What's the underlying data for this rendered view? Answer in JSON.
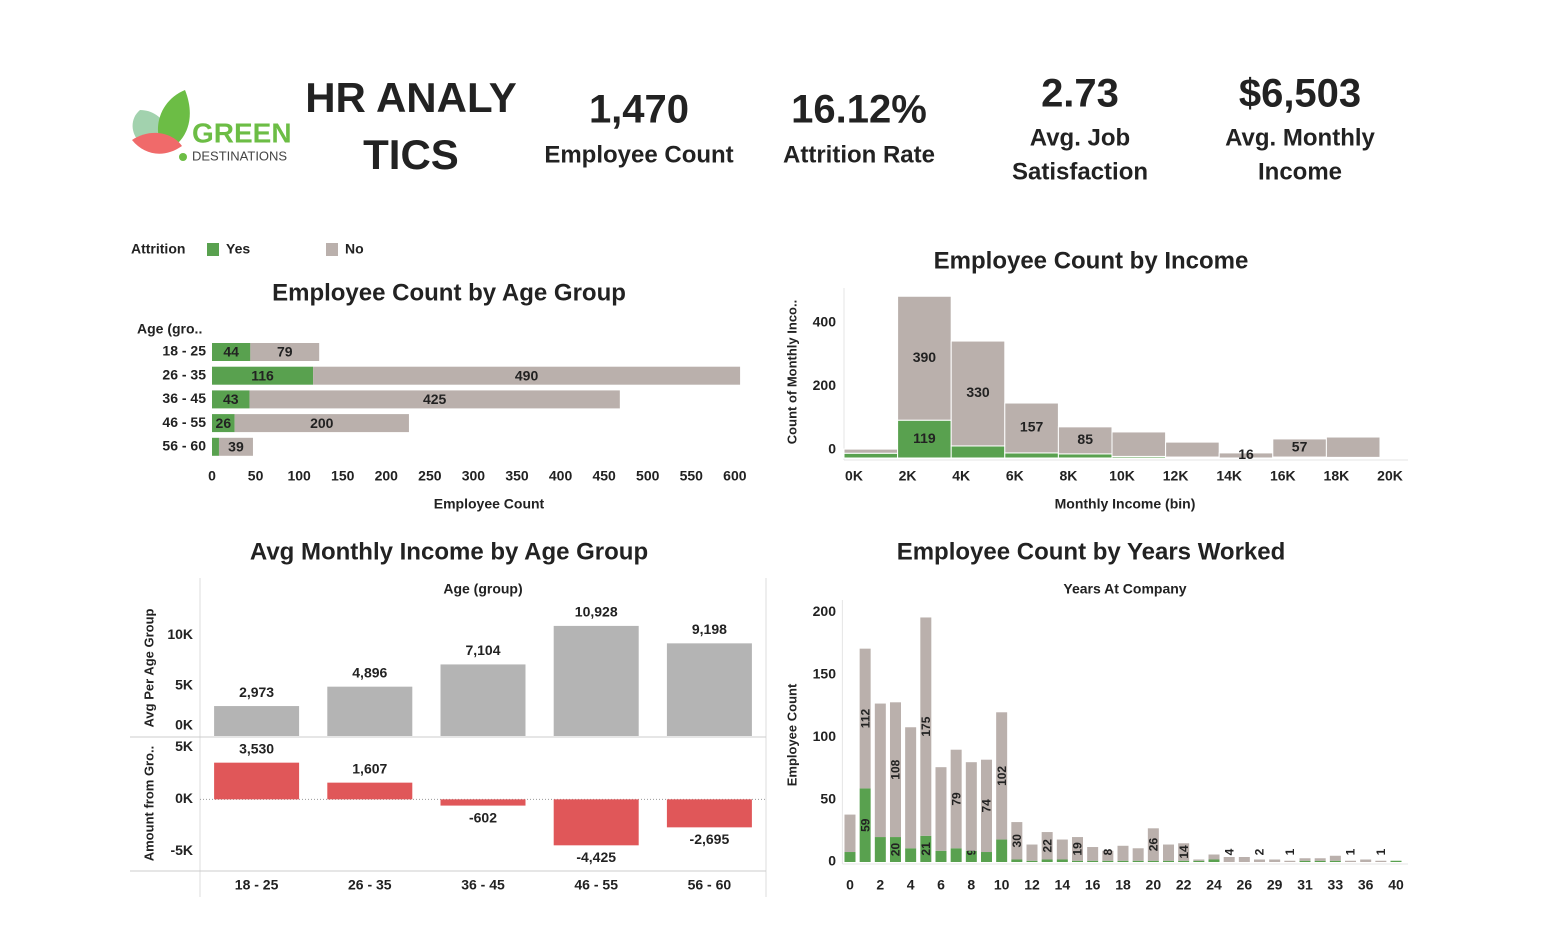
{
  "header": {
    "logo": {
      "brand": "GREEN",
      "sub": "DESTINATIONS"
    },
    "title_lines": [
      "HR ANALY",
      "TICS"
    ],
    "kpis": [
      {
        "value": "1,470",
        "label": [
          "Employee Count"
        ]
      },
      {
        "value": "16.12%",
        "label": [
          "Attrition Rate"
        ]
      },
      {
        "value": "2.73",
        "label": [
          "Avg. Job",
          "Satisfaction"
        ]
      },
      {
        "value": "$6,503",
        "label": [
          "Avg. Monthly",
          "Income"
        ]
      }
    ]
  },
  "legend": {
    "title": "Attrition"
  },
  "chart_data": [
    {
      "type": "hbar_stacked",
      "title": "Employee Count by Age Group",
      "category_header": "Age (gro..",
      "xlabel": "Employee Count",
      "categories": [
        "18 - 25",
        "26 - 35",
        "36 - 45",
        "46 - 55",
        "56 - 60"
      ],
      "series": [
        {
          "name": "Yes",
          "color": "#59a14f",
          "values": [
            44,
            116,
            43,
            26,
            8
          ],
          "value_labels": [
            "44",
            "116",
            "43",
            "26",
            null
          ]
        },
        {
          "name": "No",
          "color": "#bab0ac",
          "values": [
            79,
            490,
            425,
            200,
            39
          ]
        }
      ],
      "xlim": [
        0,
        630
      ],
      "xticks": [
        0,
        50,
        100,
        150,
        200,
        250,
        300,
        350,
        400,
        450,
        500,
        550,
        600
      ]
    },
    {
      "type": "histogram",
      "title": "Employee Count by Income",
      "xlabel": "Monthly Income (bin)",
      "ylabel": "Count of Monthly Inco..",
      "bins": [
        0,
        2000,
        4000,
        6000,
        8000,
        10000,
        12000,
        14000,
        16000,
        18000,
        20000
      ],
      "series": [
        {
          "name": "Yes",
          "color": "#59a14f",
          "values": [
            15,
            119,
            38,
            16,
            13,
            5,
            3,
            0,
            3,
            2
          ],
          "value_labels": [
            null,
            "119",
            null,
            null,
            null,
            null,
            null,
            null,
            null,
            null
          ]
        },
        {
          "name": "No",
          "color": "#bab0ac",
          "values": [
            13,
            390,
            330,
            157,
            85,
            77,
            47,
            16,
            57,
            64
          ],
          "value_labels": [
            null,
            "390",
            "330",
            "157",
            "85",
            null,
            null,
            "16",
            "57",
            null
          ]
        }
      ],
      "xlim": [
        0,
        20000
      ],
      "xticks": [
        {
          "value": 0,
          "label": "0K"
        },
        {
          "value": 2000,
          "label": "2K"
        },
        {
          "value": 4000,
          "label": "4K"
        },
        {
          "value": 6000,
          "label": "6K"
        },
        {
          "value": 8000,
          "label": "8K"
        },
        {
          "value": 10000,
          "label": "10K"
        },
        {
          "value": 12000,
          "label": "12K"
        },
        {
          "value": 14000,
          "label": "14K"
        },
        {
          "value": 16000,
          "label": "16K"
        },
        {
          "value": 18000,
          "label": "18K"
        },
        {
          "value": 20000,
          "label": "20K"
        }
      ],
      "ylim": [
        0,
        535
      ],
      "yticks": [
        0,
        200,
        400
      ]
    },
    {
      "type": "bar_panels",
      "title": "Avg Monthly Income by Age Group",
      "column_header": "Age (group)",
      "categories": [
        "18 - 25",
        "26 - 35",
        "36 - 45",
        "46 - 55",
        "56 - 60"
      ],
      "panels": [
        {
          "ylabel": "Avg Per Age Group",
          "color": "#b4b4b4",
          "values": [
            2973,
            4896,
            7104,
            10928,
            9198
          ],
          "value_labels": [
            "2,973",
            "4,896",
            "7,104",
            "10,928",
            "9,198"
          ],
          "ylim": [
            0,
            13500
          ],
          "yticks": [
            {
              "value": 0,
              "label": "0K"
            },
            {
              "value": 5000,
              "label": "5K"
            },
            {
              "value": 10000,
              "label": "10K"
            }
          ]
        },
        {
          "ylabel": "Amount from Gro..",
          "color": "#e05759",
          "values": [
            3530,
            1607,
            -602,
            -4425,
            -2695
          ],
          "value_labels": [
            "3,530",
            "1,607",
            "-602",
            "-4,425",
            "-2,695"
          ],
          "ylim": [
            -6800,
            6000
          ],
          "yticks": [
            {
              "value": -5000,
              "label": "-5K"
            },
            {
              "value": 0,
              "label": "0K"
            },
            {
              "value": 5000,
              "label": "5K"
            }
          ]
        }
      ]
    },
    {
      "type": "vbar_stacked",
      "title": "Employee Count by Years Worked",
      "subtitle": "Years At Company",
      "ylabel": "Employee Count",
      "categories": [
        "0",
        null,
        "2",
        null,
        "4",
        null,
        "6",
        null,
        "8",
        null,
        "10",
        null,
        "12",
        null,
        "14",
        null,
        "16",
        null,
        "18",
        null,
        "20",
        null,
        "22",
        null,
        "24",
        null,
        "26",
        null,
        "29",
        null,
        "31",
        null,
        "33",
        null,
        "36",
        null,
        "40"
      ],
      "series": [
        {
          "name": "Yes",
          "color": "#59a14f",
          "values": [
            8,
            59,
            20,
            20,
            11,
            21,
            9,
            11,
            9,
            8,
            18,
            2,
            1,
            2,
            2,
            1,
            1,
            1,
            1,
            1,
            1,
            1,
            1,
            1,
            2,
            0,
            0,
            0,
            0,
            0,
            1,
            1,
            1,
            0,
            0,
            0,
            1
          ],
          "value_labels": [
            null,
            "59",
            null,
            "20",
            null,
            "21",
            null,
            null,
            "9",
            null,
            null,
            null,
            null,
            null,
            null,
            null,
            null,
            null,
            null,
            null,
            null,
            null,
            null,
            null,
            null,
            null,
            null,
            null,
            null,
            null,
            null,
            null,
            null,
            null,
            null,
            null,
            null
          ]
        },
        {
          "name": "No",
          "color": "#bab0ac",
          "values": [
            30,
            112,
            107,
            108,
            97,
            175,
            67,
            79,
            71,
            74,
            102,
            30,
            13,
            22,
            16,
            19,
            11,
            8,
            12,
            10,
            26,
            13,
            14,
            1,
            4,
            4,
            4,
            2,
            2,
            1,
            2,
            2,
            4,
            1,
            2,
            1,
            0
          ],
          "value_labels": [
            null,
            "112",
            null,
            "108",
            null,
            "175",
            null,
            "79",
            null,
            "74",
            "102",
            "30",
            null,
            "22",
            null,
            "19",
            null,
            "8",
            null,
            null,
            "26",
            null,
            "14",
            null,
            null,
            "4",
            null,
            "2",
            null,
            "1",
            null,
            null,
            null,
            "1",
            null,
            "1",
            null
          ]
        }
      ],
      "ylim": [
        0,
        210
      ],
      "yticks": [
        0,
        50,
        100,
        150,
        200
      ]
    }
  ]
}
